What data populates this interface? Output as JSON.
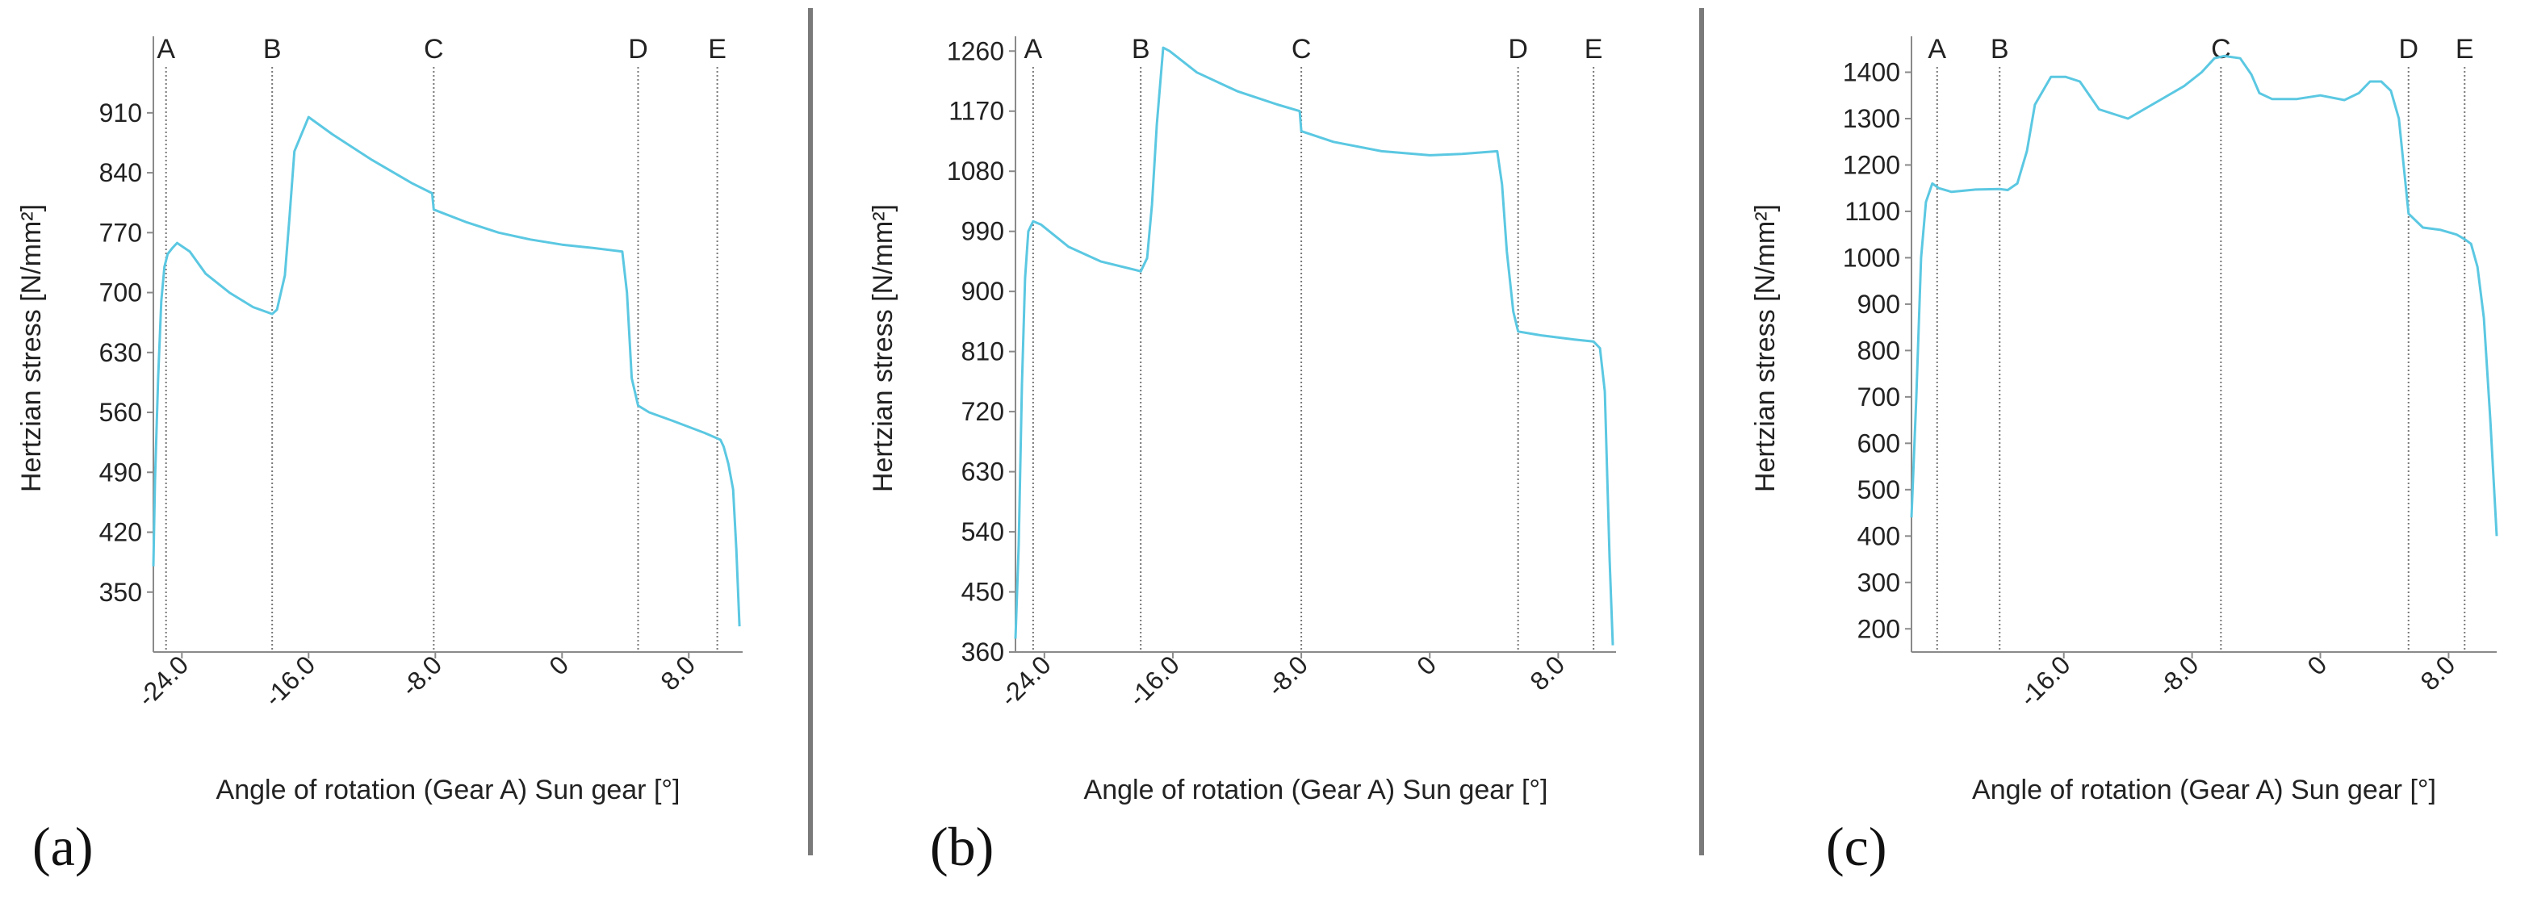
{
  "colors": {
    "line": "#5bc8e2",
    "axis": "#8a8a8a",
    "marker": "#777777",
    "divider": "#7a7a7a",
    "text": "#222222"
  },
  "chart_data": [
    {
      "type": "line",
      "panel_label": "(a)",
      "xlabel": "Angle of rotation (Gear A) Sun gear [°]",
      "ylabel": "Hertzian stress [N/mm²]",
      "xlim": [
        -25.8,
        11.4
      ],
      "ylim": [
        280,
        990
      ],
      "x_ticks": [
        -24,
        -16,
        -8,
        0,
        8
      ],
      "x_tick_labels": [
        "-24.0",
        "-16.0",
        "-8.0",
        "0",
        "8.0"
      ],
      "y_ticks": [
        350,
        420,
        490,
        560,
        630,
        700,
        770,
        840,
        910
      ],
      "y_tick_labels": [
        "350",
        "420",
        "490",
        "560",
        "630",
        "700",
        "770",
        "840",
        "910"
      ],
      "markers": [
        {
          "label": "A",
          "x": -25.0
        },
        {
          "label": "B",
          "x": -18.3
        },
        {
          "label": "C",
          "x": -8.1
        },
        {
          "label": "D",
          "x": 4.8
        },
        {
          "label": "E",
          "x": 9.8
        }
      ],
      "series": [
        {
          "name": "Hertzian stress",
          "x": [
            -25.8,
            -25.7,
            -25.5,
            -25.3,
            -25.1,
            -24.9,
            -24.6,
            -24.3,
            -23.5,
            -22.5,
            -21.0,
            -19.5,
            -18.3,
            -18.0,
            -17.5,
            -17.2,
            -16.9,
            -16.0,
            -14.5,
            -12.0,
            -9.5,
            -8.2,
            -8.1,
            -6.0,
            -4.0,
            -2.0,
            0.0,
            2.0,
            3.8,
            4.1,
            4.4,
            4.8,
            5.5,
            7.0,
            9.0,
            10.0,
            10.2,
            10.5,
            10.8,
            11.0,
            11.2
          ],
          "y": [
            380,
            480,
            600,
            690,
            730,
            745,
            752,
            758,
            748,
            722,
            700,
            683,
            675,
            680,
            720,
            790,
            865,
            905,
            885,
            855,
            828,
            816,
            797,
            782,
            770,
            762,
            756,
            752,
            748,
            700,
            600,
            568,
            560,
            550,
            536,
            528,
            520,
            500,
            470,
            400,
            310
          ]
        }
      ]
    },
    {
      "type": "line",
      "panel_label": "(b)",
      "xlabel": "Angle of rotation (Gear A) Sun gear [°]",
      "ylabel": "Hertzian stress [N/mm²]",
      "xlim": [
        -25.8,
        11.6
      ],
      "ylim": [
        360,
        1270
      ],
      "x_ticks": [
        -24,
        -16,
        -8,
        0,
        8
      ],
      "x_tick_labels": [
        "-24.0",
        "-16.0",
        "-8.0",
        "0",
        "8.0"
      ],
      "y_ticks": [
        360,
        450,
        540,
        630,
        720,
        810,
        900,
        990,
        1080,
        1170,
        1260
      ],
      "y_tick_labels": [
        "360",
        "450",
        "540",
        "630",
        "720",
        "810",
        "900",
        "990",
        "1080",
        "1170",
        "1260"
      ],
      "markers": [
        {
          "label": "A",
          "x": -24.7
        },
        {
          "label": "B",
          "x": -18.0
        },
        {
          "label": "C",
          "x": -8.0
        },
        {
          "label": "D",
          "x": 5.5
        },
        {
          "label": "E",
          "x": 10.2
        }
      ],
      "series": [
        {
          "name": "Hertzian stress",
          "x": [
            -25.8,
            -25.6,
            -25.4,
            -25.2,
            -25.0,
            -24.7,
            -24.2,
            -22.5,
            -20.5,
            -18.3,
            -18.0,
            -17.6,
            -17.3,
            -17.0,
            -16.6,
            -16.2,
            -14.5,
            -12.0,
            -9.5,
            -8.1,
            -8.0,
            -6.0,
            -3.0,
            0.0,
            2.0,
            4.2,
            4.5,
            4.8,
            5.2,
            5.5,
            7.0,
            9.0,
            10.2,
            10.6,
            10.9,
            11.2,
            11.4
          ],
          "y": [
            380,
            520,
            760,
            920,
            990,
            1005,
            1000,
            967,
            945,
            932,
            930,
            950,
            1030,
            1150,
            1265,
            1260,
            1228,
            1200,
            1180,
            1170,
            1140,
            1124,
            1110,
            1104,
            1106,
            1110,
            1060,
            960,
            870,
            840,
            834,
            828,
            825,
            815,
            750,
            500,
            370
          ]
        }
      ]
    },
    {
      "type": "line",
      "panel_label": "(c)",
      "xlabel": "Angle of rotation (Gear A) Sun gear [°]",
      "ylabel": "Hertzian stress [N/mm²]",
      "xlim": [
        -25.5,
        11.0
      ],
      "ylim": [
        150,
        1460
      ],
      "x_ticks": [
        -16,
        -8,
        0,
        8
      ],
      "x_tick_labels": [
        "-16.0",
        "-8.0",
        "0",
        "8.0"
      ],
      "y_ticks": [
        200,
        300,
        400,
        500,
        600,
        700,
        800,
        900,
        1000,
        1100,
        1200,
        1300,
        1400
      ],
      "y_tick_labels": [
        "200",
        "300",
        "400",
        "500",
        "600",
        "700",
        "800",
        "900",
        "1000",
        "1100",
        "1200",
        "1300",
        "1400"
      ],
      "markers": [
        {
          "label": "A",
          "x": -23.9
        },
        {
          "label": "B",
          "x": -20.0
        },
        {
          "label": "C",
          "x": -6.2
        },
        {
          "label": "D",
          "x": 5.5
        },
        {
          "label": "E",
          "x": 9.0
        }
      ],
      "series": [
        {
          "name": "Hertzian stress",
          "x": [
            -25.5,
            -25.2,
            -24.9,
            -24.6,
            -24.2,
            -23.8,
            -23.0,
            -21.5,
            -20.0,
            -19.5,
            -18.9,
            -18.3,
            -17.8,
            -16.8,
            -15.9,
            -15.0,
            -13.8,
            -12.0,
            -10.0,
            -8.5,
            -7.4,
            -6.6,
            -6.0,
            -5.0,
            -4.3,
            -3.8,
            -3.0,
            -1.5,
            0.0,
            1.5,
            2.4,
            3.1,
            3.8,
            4.4,
            4.9,
            5.5,
            6.4,
            7.5,
            8.5,
            9.0,
            9.4,
            9.8,
            10.2,
            10.6,
            11.0
          ],
          "y": [
            440,
            700,
            1000,
            1120,
            1160,
            1150,
            1142,
            1147,
            1148,
            1146,
            1160,
            1230,
            1330,
            1390,
            1390,
            1380,
            1320,
            1300,
            1340,
            1370,
            1400,
            1430,
            1435,
            1430,
            1395,
            1355,
            1342,
            1342,
            1350,
            1340,
            1355,
            1380,
            1380,
            1360,
            1300,
            1095,
            1065,
            1060,
            1050,
            1040,
            1030,
            980,
            870,
            650,
            400
          ]
        }
      ]
    }
  ]
}
